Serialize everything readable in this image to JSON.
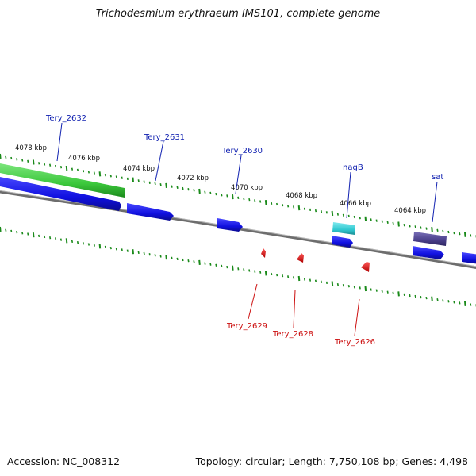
{
  "title": "Trichodesmium erythraeum IMS101, complete genome",
  "footer": {
    "accession": "Accession: NC_008312",
    "summary": "Topology: circular; Length: 7,750,108 bp; Genes: 4,498"
  },
  "ticks": [
    "4078 kbp",
    "4076 kbp",
    "4074 kbp",
    "4072 kbp",
    "4070 kbp",
    "4068 kbp",
    "4066 kbp",
    "4064 kbp"
  ],
  "genes_forward": [
    "Tery_2632",
    "Tery_2631",
    "Tery_2630",
    "nagB",
    "sat"
  ],
  "genes_reverse": [
    "Tery_2629",
    "Tery_2628",
    "Tery_2626"
  ],
  "colors": {
    "cds": "#1010e0",
    "rrna_green": "#3cc83c",
    "cyan_feature": "#30c8d0",
    "purple_feature": "#4a3f8a",
    "reverse_feature": "#e00000",
    "forward_label": "#1020b0",
    "reverse_label": "#cc1010",
    "tick_mark": "#1a8a1a",
    "backbone": "#808080"
  }
}
